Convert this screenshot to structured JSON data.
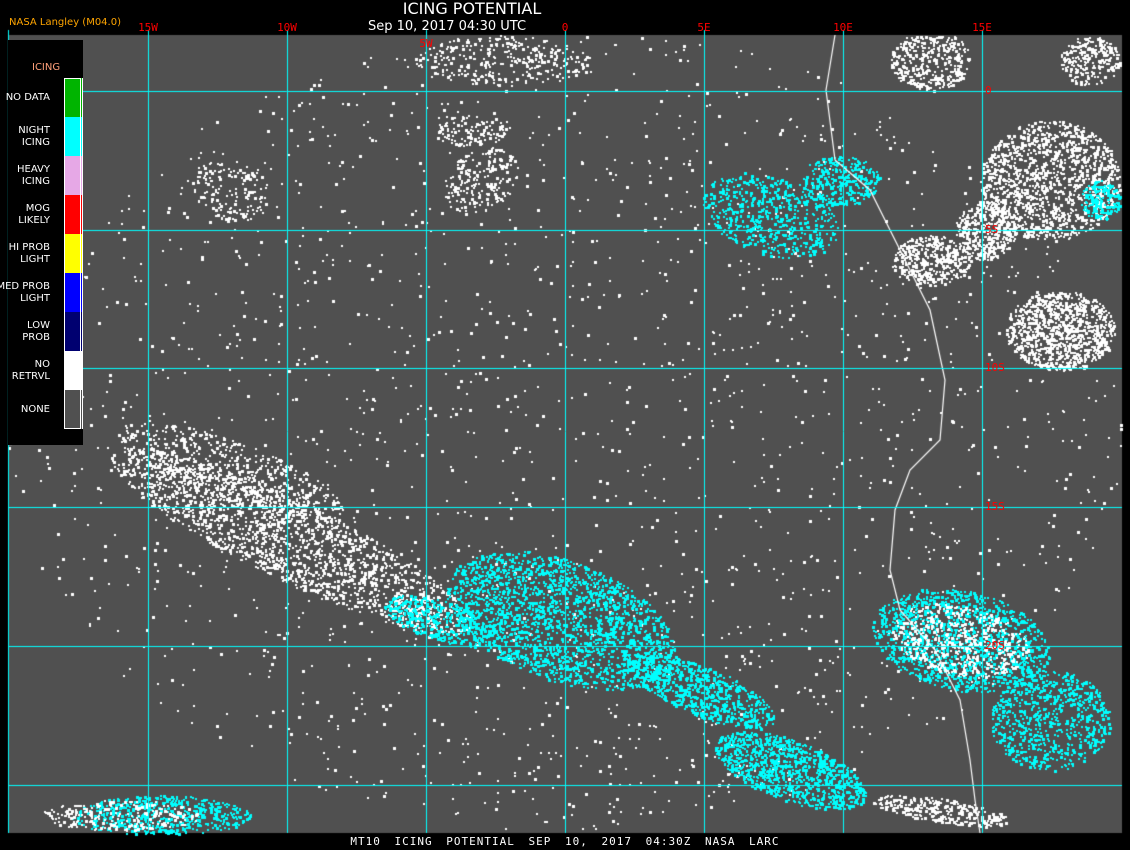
{
  "header": {
    "title": "ICING POTENTIAL",
    "subtitle": "Sep 10, 2017 04:30 UTC",
    "credit": "NASA Langley (M04.0)"
  },
  "map": {
    "longitude_labels": [
      "15W",
      "10W",
      "5W",
      "0",
      "5E",
      "10E",
      "15E"
    ],
    "latitude_labels": [
      "0",
      "5S",
      "10S",
      "15S",
      "20S"
    ],
    "colors": {
      "background": "#505050",
      "grid": "#00ffff",
      "labels": "#ff0000",
      "coastline": "#ffffff",
      "no_retrieval": "#ffffff",
      "night_icing": "#00ffff"
    }
  },
  "legend": {
    "title": "ICING",
    "items": [
      {
        "label": "NO DATA",
        "color": "#00b400"
      },
      {
        "label": "NIGHT ICING",
        "color": "#00ffff"
      },
      {
        "label": "HEAVY ICING",
        "color": "#e6a8e6"
      },
      {
        "label": "MOG LIKELY",
        "color": "#ff0000"
      },
      {
        "label": "HI PROB LIGHT",
        "color": "#ffff00"
      },
      {
        "label": "MED PROB LIGHT",
        "color": "#0000ff"
      },
      {
        "label": "LOW PROB",
        "color": "#000070"
      },
      {
        "label": "NO RETRVL",
        "color": "#ffffff"
      },
      {
        "label": "NONE",
        "color": "#505050"
      }
    ]
  },
  "footer": {
    "text": "MT10  ICING POTENTIAL   SEP 10, 2017 04:30Z   NASA LARC"
  }
}
